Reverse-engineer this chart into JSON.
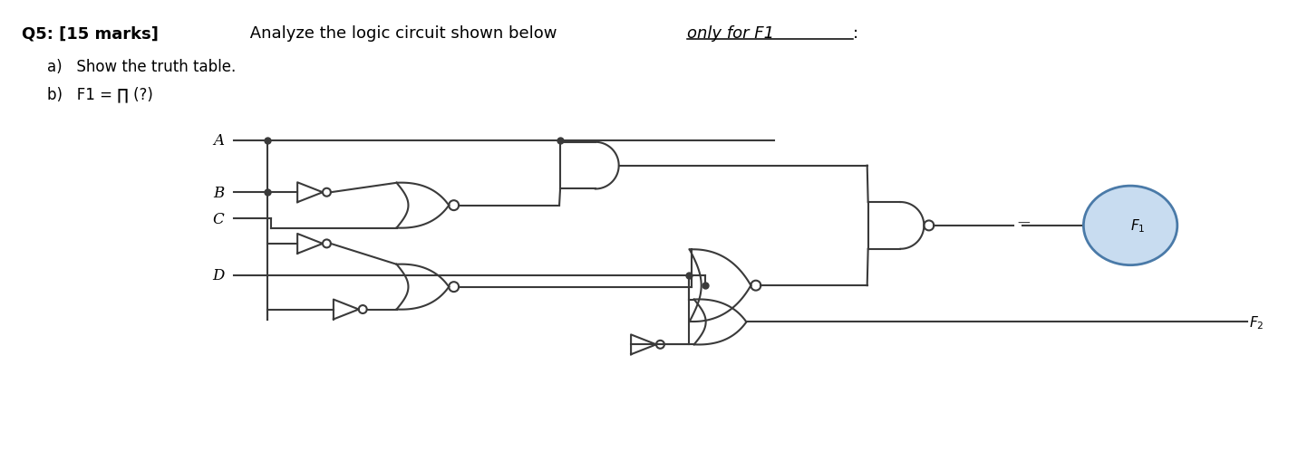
{
  "bg_color": "#ffffff",
  "line_color": "#3a3a3a",
  "gate_edge": "#3a3a3a",
  "bubble_fill": "#c8dcf0",
  "bubble_edge": "#4a7aa8",
  "f1_label": "$F_1$",
  "f2_label": "$F_2$",
  "input_labels": [
    "A",
    "B",
    "C",
    "D"
  ],
  "title_bold": "Q5: [15 marks]",
  "title_normal": " Analyze the logic circuit shown below ",
  "title_italic_underline": "only for F1",
  "title_end": ":",
  "item_a": "a)   Show the truth table.",
  "item_b": "b)   F1 = ∏ (?)"
}
